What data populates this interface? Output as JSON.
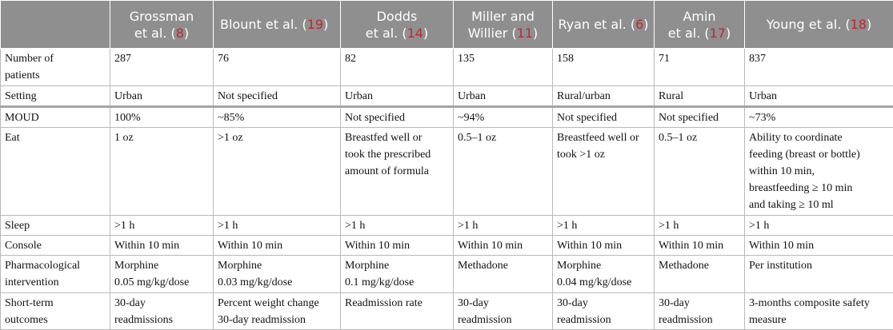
{
  "columns": [
    {
      "name_l1": "",
      "name_l2": "",
      "ref": ""
    },
    {
      "name_l1": "Grossman",
      "name_l2": "et al. (",
      "ref": "8",
      "suffix": ")"
    },
    {
      "name_l1": "Blount et al. (",
      "name_l2": "",
      "ref": "19",
      "suffix": ")"
    },
    {
      "name_l1": "Dodds",
      "name_l2": "et al. (",
      "ref": "14",
      "suffix": ")"
    },
    {
      "name_l1": "Miller and",
      "name_l2": "Willier (",
      "ref": "11",
      "suffix": ")"
    },
    {
      "name_l1": "Ryan et al. (",
      "name_l2": "",
      "ref": "6",
      "suffix": ")"
    },
    {
      "name_l1": "Amin",
      "name_l2": "et al. (",
      "ref": "17",
      "suffix": ")"
    },
    {
      "name_l1": "Young et al. (",
      "name_l2": "",
      "ref": "18",
      "suffix": ")"
    }
  ],
  "rows": {
    "patients": {
      "label": [
        "Number of",
        "patients"
      ],
      "cells": [
        [
          "287"
        ],
        [
          "76"
        ],
        [
          "82"
        ],
        [
          "135"
        ],
        [
          "158"
        ],
        [
          "71"
        ],
        [
          "837"
        ]
      ]
    },
    "setting": {
      "label": [
        "Setting"
      ],
      "cells": [
        [
          "Urban"
        ],
        [
          "Not specified"
        ],
        [
          "Urban"
        ],
        [
          "Urban"
        ],
        [
          "Rural/urban"
        ],
        [
          "Rural"
        ],
        [
          "Urban"
        ]
      ]
    },
    "moud": {
      "label": [
        "MOUD"
      ],
      "cells": [
        [
          "100%"
        ],
        [
          "~85%"
        ],
        [
          "Not specified"
        ],
        [
          "~94%"
        ],
        [
          "Not specified"
        ],
        [
          "Not specified"
        ],
        [
          "~73%"
        ]
      ]
    },
    "eat": {
      "label": [
        "Eat"
      ],
      "cells": [
        [
          "1 oz"
        ],
        [
          ">1 oz"
        ],
        [
          "Breastfed well or",
          "took the prescribed",
          "amount of formula"
        ],
        [
          "0.5–1 oz"
        ],
        [
          "Breastfeed well or",
          "took >1 oz"
        ],
        [
          "0.5–1 oz"
        ],
        [
          "Ability to coordinate",
          "feeding (breast or bottle)",
          "within 10 min,",
          "breastfeeding ≥ 10 min",
          "and taking ≥ 10 ml"
        ]
      ]
    },
    "sleep": {
      "label": [
        "Sleep"
      ],
      "cells": [
        [
          ">1 h"
        ],
        [
          ">1 h"
        ],
        [
          ">1 h"
        ],
        [
          ">1 h"
        ],
        [
          ">1 h"
        ],
        [
          ">1 h"
        ],
        [
          ">1 h"
        ]
      ]
    },
    "console": {
      "label": [
        "Console"
      ],
      "cells": [
        [
          "Within 10 min"
        ],
        [
          "Within 10 min"
        ],
        [
          "Within 10 min"
        ],
        [
          "Within 10 min"
        ],
        [
          "Within 10 min"
        ],
        [
          "Within 10 min"
        ],
        [
          "Within 10 min"
        ]
      ]
    },
    "pharm": {
      "label": [
        "Pharmacological",
        "intervention"
      ],
      "cells": [
        [
          "Morphine",
          "0.05 mg/kg/dose"
        ],
        [
          "Morphine",
          "0.03 mg/kg/dose"
        ],
        [
          "Morphine",
          "0.1 mg/kg/dose"
        ],
        [
          "Methadone"
        ],
        [
          "Morphine",
          "0.04 mg/kg/dose"
        ],
        [
          "Methadone"
        ],
        [
          "Per institution"
        ]
      ]
    },
    "short": {
      "label": [
        "Short-term",
        "outcomes"
      ],
      "cells": [
        [
          "30-day",
          "readmissions"
        ],
        [
          "Percent weight change",
          "30-day readmission"
        ],
        [
          "Readmission rate"
        ],
        [
          "30-day",
          "readmission"
        ],
        [
          "30-day",
          "readmission"
        ],
        [
          "30-day",
          "readmission"
        ],
        [
          "3-months composite safety",
          "measure"
        ]
      ]
    }
  }
}
